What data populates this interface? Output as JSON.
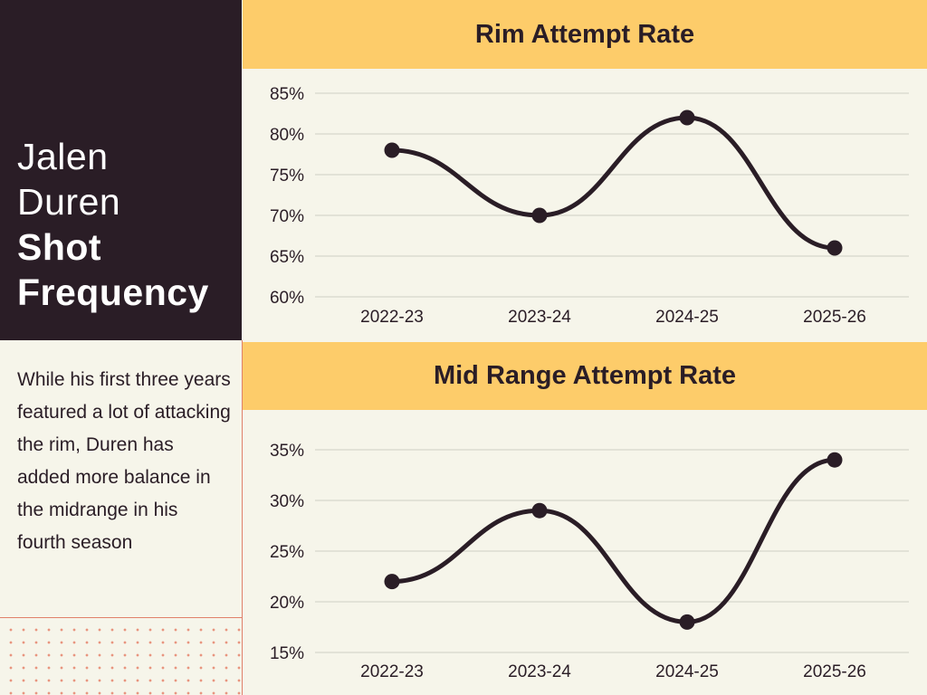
{
  "sidebar": {
    "title_line1": "Jalen",
    "title_line2": "Duren",
    "title_line3": "Shot",
    "title_line4": "Frequency",
    "description": "While his first three years featured a lot of attacking the rim, Duren has added more balance in the midrange in his fourth season"
  },
  "colors": {
    "dark": "#2a1d26",
    "header_bg": "#fdcc6a",
    "background": "#f6f5ea",
    "accent": "#e0806a",
    "grid": "#cfd0c4"
  },
  "chart_data": [
    {
      "type": "line",
      "title": "Rim Attempt Rate",
      "categories": [
        "2022-23",
        "2023-24",
        "2024-25",
        "2025-26"
      ],
      "values": [
        78,
        70,
        82,
        66
      ],
      "ylim": [
        60,
        85
      ],
      "yticks": [
        60,
        65,
        70,
        75,
        80,
        85
      ],
      "ytick_labels": [
        "60%",
        "65%",
        "70%",
        "75%",
        "80%",
        "85%"
      ],
      "xlabel": "",
      "ylabel": "",
      "grid": true
    },
    {
      "type": "line",
      "title": "Mid Range Attempt Rate",
      "categories": [
        "2022-23",
        "2023-24",
        "2024-25",
        "2025-26"
      ],
      "values": [
        22,
        29,
        18,
        34
      ],
      "ylim": [
        15,
        35
      ],
      "yticks": [
        15,
        20,
        25,
        30,
        35
      ],
      "ytick_labels": [
        "15%",
        "20%",
        "25%",
        "30%",
        "35%"
      ],
      "xlabel": "",
      "ylabel": "",
      "grid": true
    }
  ]
}
